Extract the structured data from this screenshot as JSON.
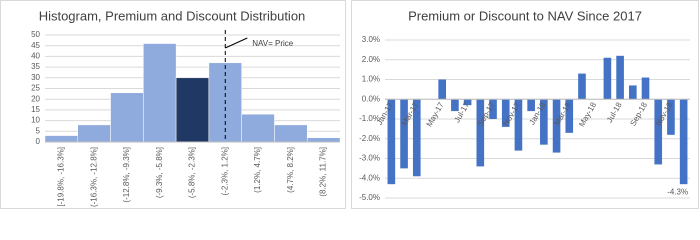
{
  "chart_data": [
    {
      "type": "histogram",
      "title": "Histogram, Premium and Discount Distribution",
      "categories": [
        "[-19.8%, -16.3%]",
        "(-16.3%, -12.8%]",
        "(-12.8%, -9.3%]",
        "(-9.3%, -5.8%]",
        "(-5.8%, -2.3%]",
        "(-2.3%, 1.2%]",
        "(1.2%, 4.7%]",
        "(4.7%, 8.2%]",
        "(8.2%, 11.7%]"
      ],
      "values": [
        3,
        8,
        23,
        46,
        30,
        37,
        13,
        8,
        2
      ],
      "colors": [
        "#8faadc",
        "#8faadc",
        "#8faadc",
        "#8faadc",
        "#1f3864",
        "#8faadc",
        "#8faadc",
        "#8faadc",
        "#8faadc"
      ],
      "annotation": "NAV= Price",
      "ylim": [
        0,
        50
      ],
      "yticks": [
        0,
        5,
        10,
        15,
        20,
        25,
        30,
        35,
        40,
        45,
        50
      ],
      "grid": true
    },
    {
      "type": "bar",
      "title": "Premium or Discount to NAV Since 2017",
      "categories": [
        "Jan-17",
        null,
        "Mar-17",
        null,
        "May-17",
        null,
        "Jul-17",
        null,
        "Sep-17",
        null,
        "Nov-17",
        null,
        "Jan-18",
        null,
        "Mar-18",
        null,
        "May-18",
        null,
        "Jul-18",
        null,
        "Sep-18",
        null,
        "Nov-18",
        null
      ],
      "values": [
        -4.3,
        -3.5,
        -3.9,
        0,
        1.0,
        -0.6,
        -0.3,
        -3.4,
        -1.0,
        -1.4,
        -2.6,
        -0.6,
        -2.3,
        -2.7,
        -1.7,
        1.3,
        0,
        2.1,
        2.2,
        0.7,
        1.1,
        -3.3,
        -1.8,
        -4.3
      ],
      "value_labels": [
        null,
        null,
        null,
        null,
        null,
        null,
        null,
        null,
        null,
        null,
        null,
        null,
        null,
        null,
        null,
        null,
        null,
        null,
        null,
        null,
        null,
        null,
        null,
        "-4.3%"
      ],
      "color": "#4472c4",
      "ylim": [
        -5,
        3
      ],
      "yticks": [
        {
          "value": -5,
          "label": "-5.0%"
        },
        {
          "value": -4,
          "label": "-4.0%"
        },
        {
          "value": -3,
          "label": "-3.0%"
        },
        {
          "value": -2,
          "label": "-2.0%"
        },
        {
          "value": -1,
          "label": "-1.0%"
        },
        {
          "value": 0,
          "label": "0.0%"
        },
        {
          "value": 1,
          "label": "1.0%"
        },
        {
          "value": 2,
          "label": "2.0%"
        },
        {
          "value": 3,
          "label": "3.0%"
        }
      ],
      "grid": true
    }
  ]
}
